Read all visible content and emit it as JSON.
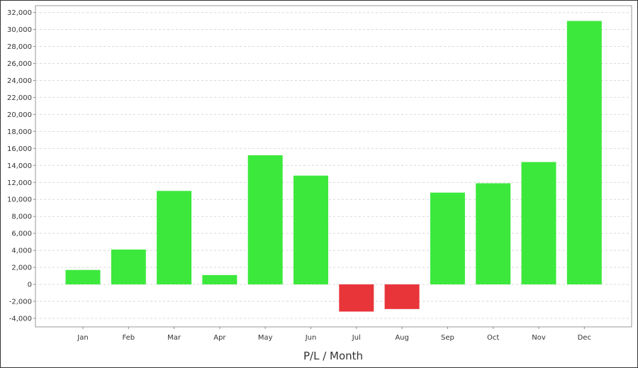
{
  "chart_data": {
    "type": "bar",
    "title": "",
    "xlabel": "P/L / Month",
    "ylabel": "",
    "categories": [
      "Jan",
      "Feb",
      "Mar",
      "Apr",
      "May",
      "Jun",
      "Jul",
      "Aug",
      "Sep",
      "Oct",
      "Nov",
      "Dec"
    ],
    "values": [
      1700,
      4100,
      11000,
      1100,
      15200,
      12800,
      -3200,
      -2900,
      10800,
      11900,
      14400,
      31000
    ],
    "ylim": [
      -5000,
      32800
    ],
    "yticks": [
      -4000,
      -2000,
      0,
      2000,
      4000,
      6000,
      8000,
      10000,
      12000,
      14000,
      16000,
      18000,
      20000,
      22000,
      24000,
      26000,
      28000,
      30000,
      32000
    ],
    "ytick_labels": [
      "-4,000",
      "-2,000",
      "0",
      "2,000",
      "4,000",
      "6,000",
      "8,000",
      "10,000",
      "12,000",
      "14,000",
      "16,000",
      "18,000",
      "20,000",
      "22,000",
      "24,000",
      "26,000",
      "28,000",
      "30,000",
      "32,000"
    ],
    "grid": true,
    "legend": "none",
    "colors": {
      "positive": "#3de83d",
      "negative": "#e8353a",
      "grid": "#d9d9d9",
      "axis": "#888888"
    }
  }
}
